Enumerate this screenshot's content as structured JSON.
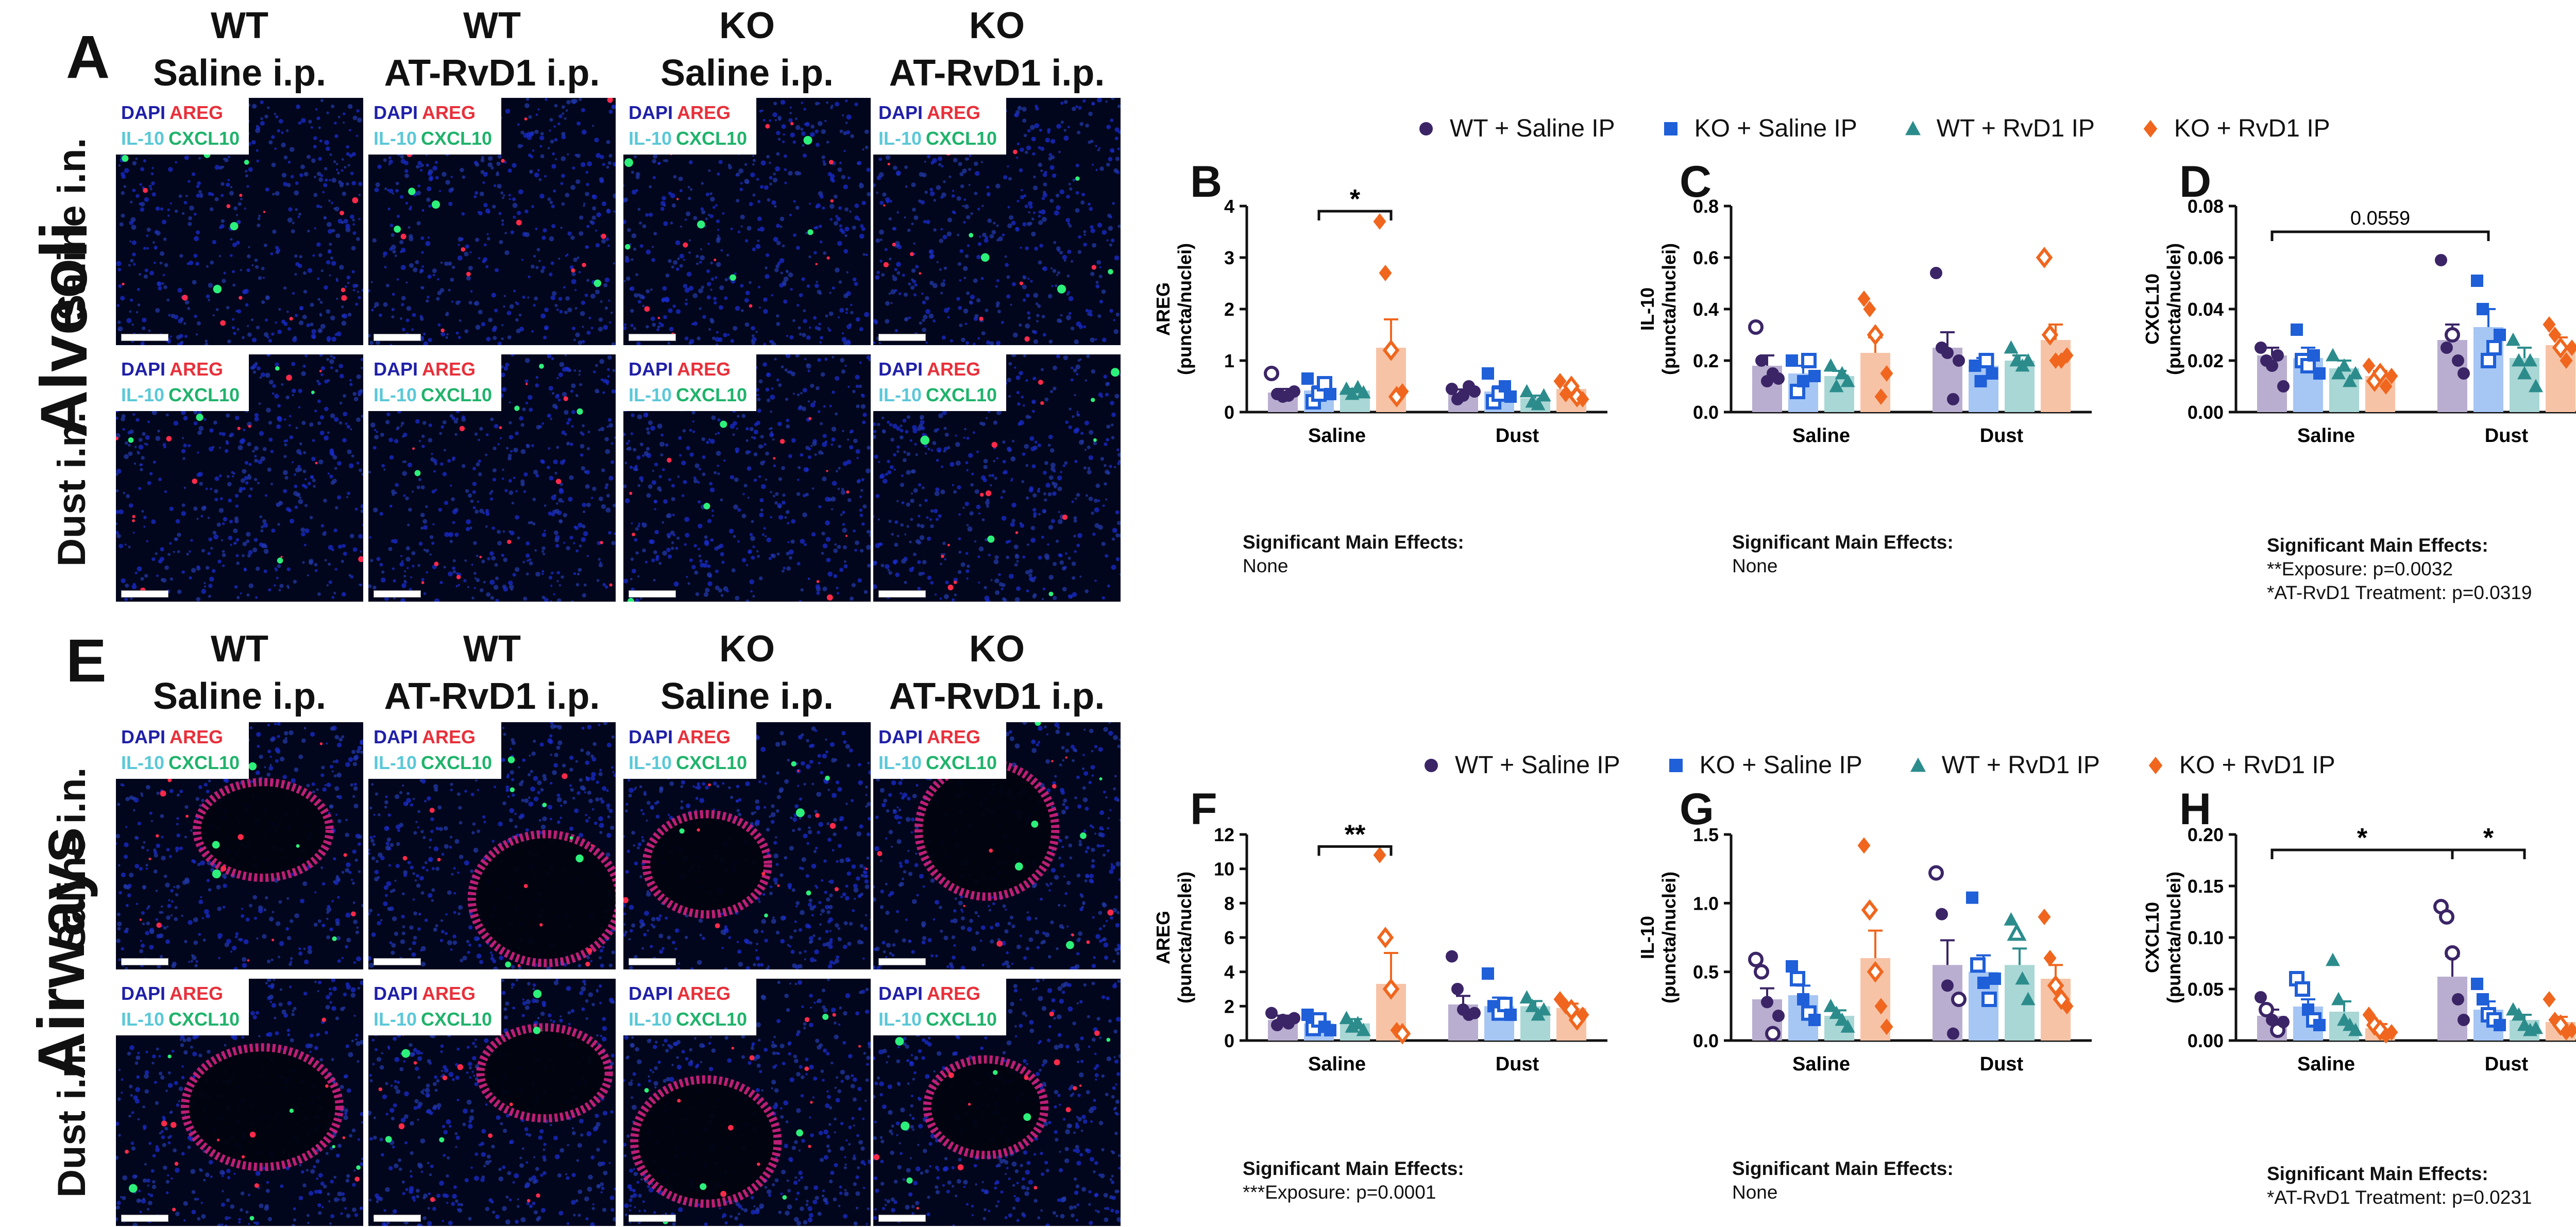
{
  "panel_letters": {
    "A": "A",
    "B": "B",
    "C": "C",
    "D": "D",
    "E": "E",
    "F": "F",
    "G": "G",
    "H": "H"
  },
  "region_labels": {
    "top": "Alveoli",
    "bottom": "Airways"
  },
  "column_headers": [
    {
      "line1": "WT",
      "line2": "Saline i.p."
    },
    {
      "line1": "WT",
      "line2": "AT-RvD1 i.p."
    },
    {
      "line1": "KO",
      "line2": "Saline i.p."
    },
    {
      "line1": "KO",
      "line2": "AT-RvD1 i.p."
    }
  ],
  "row_headers": {
    "saline": "Saline i.n.",
    "dust": "Dust i.n."
  },
  "stain_labels": {
    "dapi": "DAPI",
    "areg": "AREG",
    "il10": "IL-10",
    "cxcl10": "CXCL10"
  },
  "legend": {
    "items": [
      {
        "label": "WT + Saline IP",
        "color": "#3b2566",
        "marker": "circle"
      },
      {
        "label": "KO + Saline IP",
        "color": "#1f5fd8",
        "marker": "square"
      },
      {
        "label": "WT + RvD1 IP",
        "color": "#2c8c8c",
        "marker": "triangle"
      },
      {
        "label": "KO + RvD1 IP",
        "color": "#f0661e",
        "marker": "diamond"
      }
    ]
  },
  "colors": {
    "bar_fills": [
      "#b9aed0",
      "#a6c6f4",
      "#a9d7d5",
      "#f7c3a6"
    ],
    "marker_colors": [
      "#3b2566",
      "#1f5fd8",
      "#2c8c8c",
      "#f0661e"
    ]
  },
  "effects": {
    "title": "Significant Main Effects:",
    "B": [
      "None"
    ],
    "C": [
      "None"
    ],
    "D": [
      "**Exposure: p=0.0032",
      "*AT-RvD1 Treatment: p=0.0319"
    ],
    "F": [
      "***Exposure: p=0.0001"
    ],
    "G": [
      "None"
    ],
    "H": [
      "*AT-RvD1 Treatment: p=0.0231"
    ]
  },
  "chart_data": [
    {
      "id": "B",
      "type": "bar",
      "ylabel": "AREG",
      "ylabel2": "(puncta/nuclei)",
      "categories": [
        "Saline",
        "Dust"
      ],
      "ylim": [
        0,
        4
      ],
      "yticks": [
        0,
        1,
        2,
        3,
        4
      ],
      "ytick_labels": [
        "0",
        "1",
        "2",
        "3",
        "4"
      ],
      "series": [
        {
          "name": "WT + Saline IP",
          "values": [
            0.38,
            0.38
          ],
          "sem": [
            0.07,
            0.06
          ],
          "points": [
            [
              0.75,
              0.35,
              0.3,
              0.32,
              0.4
            ],
            [
              0.45,
              0.25,
              0.32,
              0.5,
              0.4
            ]
          ],
          "hollow": [
            [
              0
            ],
            []
          ]
        },
        {
          "name": "KO + Saline IP",
          "values": [
            0.42,
            0.4
          ],
          "sem": [
            0.08,
            0.1
          ],
          "points": [
            [
              0.65,
              0.2,
              0.35,
              0.55,
              0.35
            ],
            [
              0.75,
              0.2,
              0.35,
              0.5,
              0.3
            ]
          ],
          "hollow": [
            [
              1,
              2,
              3
            ],
            [
              1,
              2
            ]
          ]
        },
        {
          "name": "WT + RvD1 IP",
          "values": [
            0.42,
            0.27
          ],
          "sem": [
            0.03,
            0.05
          ],
          "points": [
            [
              0.45,
              0.35,
              0.48,
              0.38
            ],
            [
              0.4,
              0.2,
              0.15,
              0.32
            ]
          ],
          "hollow": [
            [],
            []
          ]
        },
        {
          "name": "KO + RvD1 IP",
          "values": [
            1.25,
            0.45
          ],
          "sem": [
            0.55,
            0.07
          ],
          "points": [
            [
              3.7,
              2.7,
              1.2,
              0.3,
              0.4
            ],
            [
              0.6,
              0.35,
              0.5,
              0.3,
              0.25
            ]
          ],
          "hollow": [
            [
              2,
              3
            ],
            [
              2,
              3
            ]
          ]
        }
      ],
      "sig": [
        {
          "from": [
            0,
            1
          ],
          "to": [
            0,
            3
          ],
          "label": "*",
          "y": 3.9
        }
      ]
    },
    {
      "id": "C",
      "type": "bar",
      "ylabel": "IL-10",
      "ylabel2": "(puncta/nuclei)",
      "categories": [
        "Saline",
        "Dust"
      ],
      "ylim": [
        0,
        0.8
      ],
      "yticks": [
        0,
        0.2,
        0.4,
        0.6,
        0.8
      ],
      "ytick_labels": [
        "0.0",
        "0.2",
        "0.4",
        "0.6",
        "0.8"
      ],
      "series": [
        {
          "name": "WT + Saline IP",
          "values": [
            0.18,
            0.25
          ],
          "sem": [
            0.04,
            0.06
          ],
          "points": [
            [
              0.33,
              0.2,
              0.12,
              0.15,
              0.13
            ],
            [
              0.54,
              0.25,
              0.23,
              0.05,
              0.2
            ]
          ],
          "hollow": [
            [
              0
            ],
            []
          ]
        },
        {
          "name": "KO + Saline IP",
          "values": [
            0.15,
            0.18
          ],
          "sem": [
            0.03,
            0.03
          ],
          "points": [
            [
              0.2,
              0.08,
              0.12,
              0.2,
              0.14
            ],
            [
              0.18,
              0.12,
              0.2,
              0.15
            ]
          ],
          "hollow": [
            [
              1,
              3
            ],
            [
              2
            ]
          ]
        },
        {
          "name": "WT + RvD1 IP",
          "values": [
            0.14,
            0.2
          ],
          "sem": [
            0.02,
            0.02
          ],
          "points": [
            [
              0.18,
              0.1,
              0.15,
              0.12
            ],
            [
              0.25,
              0.2,
              0.18,
              0.2
            ]
          ],
          "hollow": [
            [],
            []
          ]
        },
        {
          "name": "KO + RvD1 IP",
          "values": [
            0.23,
            0.28
          ],
          "sem": [
            0.06,
            0.06
          ],
          "points": [
            [
              0.44,
              0.4,
              0.3,
              0.06,
              0.15
            ],
            [
              0.6,
              0.3,
              0.2,
              0.2,
              0.22
            ]
          ],
          "hollow": [
            [
              2
            ],
            [
              0,
              1
            ]
          ]
        }
      ],
      "sig": []
    },
    {
      "id": "D",
      "type": "bar",
      "ylabel": "CXCL10",
      "ylabel2": "(puncta/nuclei)",
      "categories": [
        "Saline",
        "Dust"
      ],
      "ylim": [
        0,
        0.08
      ],
      "yticks": [
        0,
        0.02,
        0.04,
        0.06,
        0.08
      ],
      "ytick_labels": [
        "0.00",
        "0.02",
        "0.04",
        "0.06",
        "0.08"
      ],
      "series": [
        {
          "name": "WT + Saline IP",
          "values": [
            0.022,
            0.028
          ],
          "sem": [
            0.003,
            0.006
          ],
          "points": [
            [
              0.025,
              0.02,
              0.018,
              0.022,
              0.01
            ],
            [
              0.059,
              0.025,
              0.03,
              0.02,
              0.015
            ]
          ],
          "hollow": [
            [],
            [
              2
            ]
          ]
        },
        {
          "name": "KO + Saline IP",
          "values": [
            0.021,
            0.033
          ],
          "sem": [
            0.004,
            0.007
          ],
          "points": [
            [
              0.032,
              0.02,
              0.018,
              0.022,
              0.015
            ],
            [
              0.051,
              0.04,
              0.02,
              0.025,
              0.03
            ]
          ],
          "hollow": [
            [
              1,
              2
            ],
            [
              2,
              3
            ]
          ]
        },
        {
          "name": "WT + RvD1 IP",
          "values": [
            0.017,
            0.021
          ],
          "sem": [
            0.003,
            0.004
          ],
          "points": [
            [
              0.022,
              0.015,
              0.018,
              0.012,
              0.015
            ],
            [
              0.028,
              0.02,
              0.015,
              0.02,
              0.01
            ]
          ],
          "hollow": [
            [],
            []
          ]
        },
        {
          "name": "KO + RvD1 IP",
          "values": [
            0.014,
            0.026
          ],
          "sem": [
            0.002,
            0.003
          ],
          "points": [
            [
              0.018,
              0.012,
              0.015,
              0.01,
              0.014
            ],
            [
              0.034,
              0.03,
              0.025,
              0.02,
              0.025
            ]
          ],
          "hollow": [
            [
              1,
              2
            ],
            [
              2
            ]
          ]
        }
      ],
      "sig": [
        {
          "from": [
            0,
            0
          ],
          "to": [
            1,
            1
          ],
          "label": "0.0559",
          "y": 0.07
        }
      ]
    },
    {
      "id": "F",
      "type": "bar",
      "ylabel": "AREG",
      "ylabel2": "(puncta/nuclei)",
      "categories": [
        "Saline",
        "Dust"
      ],
      "ylim": [
        0,
        12
      ],
      "yticks": [
        0,
        2,
        4,
        6,
        8,
        10,
        12
      ],
      "ytick_labels": [
        "0",
        "2",
        "4",
        "6",
        "8",
        "10",
        "12"
      ],
      "series": [
        {
          "name": "WT + Saline IP",
          "values": [
            1.2,
            2.1
          ],
          "sem": [
            0.25,
            0.5
          ],
          "points": [
            [
              1.6,
              0.9,
              1.2,
              1.0,
              1.3
            ],
            [
              4.9,
              3.0,
              1.8,
              1.5,
              1.6
            ]
          ],
          "hollow": [
            [],
            []
          ]
        },
        {
          "name": "KO + Saline IP",
          "values": [
            1.0,
            2.0
          ],
          "sem": [
            0.3,
            0.5
          ],
          "points": [
            [
              1.5,
              0.7,
              1.2,
              0.8,
              0.6
            ],
            [
              3.9,
              2.0,
              1.6,
              2.1,
              1.5
            ]
          ],
          "hollow": [
            [
              1,
              2
            ],
            [
              2,
              3
            ]
          ]
        },
        {
          "name": "WT + RvD1 IP",
          "values": [
            1.0,
            2.0
          ],
          "sem": [
            0.25,
            0.3
          ],
          "points": [
            [
              1.3,
              0.8,
              1.0,
              0.6
            ],
            [
              2.5,
              2.0,
              1.5,
              1.8
            ]
          ],
          "hollow": [
            [],
            []
          ]
        },
        {
          "name": "KO + RvD1 IP",
          "values": [
            3.3,
            1.9
          ],
          "sem": [
            1.8,
            0.25
          ],
          "points": [
            [
              10.8,
              6.0,
              3.0,
              0.6,
              0.4
            ],
            [
              2.4,
              2.0,
              1.8,
              1.2,
              1.5
            ]
          ],
          "hollow": [
            [
              1,
              2,
              4
            ],
            [
              2,
              3
            ]
          ]
        }
      ],
      "sig": [
        {
          "from": [
            0,
            1
          ],
          "to": [
            0,
            3
          ],
          "label": "**",
          "y": 11.3
        }
      ]
    },
    {
      "id": "G",
      "type": "bar",
      "ylabel": "IL-10",
      "ylabel2": "(puncta/nuclei)",
      "categories": [
        "Saline",
        "Dust"
      ],
      "ylim": [
        0,
        1.5
      ],
      "yticks": [
        0,
        0.5,
        1.0,
        1.5
      ],
      "ytick_labels": [
        "0.0",
        "0.5",
        "1.0",
        "1.5"
      ],
      "series": [
        {
          "name": "WT + Saline IP",
          "values": [
            0.3,
            0.55
          ],
          "sem": [
            0.08,
            0.18
          ],
          "points": [
            [
              0.59,
              0.5,
              0.28,
              0.05,
              0.18
            ],
            [
              1.22,
              0.92,
              0.4,
              0.05,
              0.3
            ]
          ],
          "hollow": [
            [
              0,
              1,
              3
            ],
            [
              0,
              4
            ]
          ]
        },
        {
          "name": "KO + Saline IP",
          "values": [
            0.33,
            0.5
          ],
          "sem": [
            0.07,
            0.12
          ],
          "points": [
            [
              0.54,
              0.45,
              0.3,
              0.2,
              0.15
            ],
            [
              1.04,
              0.55,
              0.42,
              0.3,
              0.45
            ]
          ],
          "hollow": [
            [
              1,
              3
            ],
            [
              1,
              3
            ]
          ]
        },
        {
          "name": "WT + RvD1 IP",
          "values": [
            0.18,
            0.55
          ],
          "sem": [
            0.04,
            0.12
          ],
          "points": [
            [
              0.25,
              0.2,
              0.15,
              0.1
            ],
            [
              0.88,
              0.78,
              0.45,
              0.3
            ]
          ],
          "hollow": [
            [],
            [
              1
            ]
          ]
        },
        {
          "name": "KO + RvD1 IP",
          "values": [
            0.6,
            0.45
          ],
          "sem": [
            0.2,
            0.1
          ],
          "points": [
            [
              1.42,
              0.95,
              0.5,
              0.25,
              0.1
            ],
            [
              0.9,
              0.6,
              0.4,
              0.3,
              0.25
            ]
          ],
          "hollow": [
            [
              1,
              2
            ],
            [
              2,
              3
            ]
          ]
        }
      ],
      "sig": []
    },
    {
      "id": "H",
      "type": "bar",
      "ylabel": "CXCL10",
      "ylabel2": "(puncta/nuclei)",
      "categories": [
        "Saline",
        "Dust"
      ],
      "ylim": [
        0,
        0.2
      ],
      "yticks": [
        0,
        0.05,
        0.1,
        0.15,
        0.2
      ],
      "ytick_labels": [
        "0.00",
        "0.05",
        "0.10",
        "0.15",
        "0.20"
      ],
      "series": [
        {
          "name": "WT + Saline IP",
          "values": [
            0.024,
            0.062
          ],
          "sem": [
            0.006,
            0.02
          ],
          "points": [
            [
              0.042,
              0.03,
              0.02,
              0.01,
              0.018
            ],
            [
              0.13,
              0.12,
              0.085,
              0.04,
              0.02
            ]
          ],
          "hollow": [
            [
              1,
              3
            ],
            [
              0,
              1,
              2
            ]
          ]
        },
        {
          "name": "KO + Saline IP",
          "values": [
            0.033,
            0.03
          ],
          "sem": [
            0.007,
            0.008
          ],
          "points": [
            [
              0.06,
              0.05,
              0.03,
              0.02,
              0.015
            ],
            [
              0.055,
              0.04,
              0.025,
              0.02,
              0.015
            ]
          ],
          "hollow": [
            [
              0,
              1,
              3
            ],
            [
              2,
              3
            ]
          ]
        },
        {
          "name": "WT + RvD1 IP",
          "values": [
            0.028,
            0.02
          ],
          "sem": [
            0.01,
            0.005
          ],
          "points": [
            [
              0.078,
              0.04,
              0.02,
              0.015,
              0.01
            ],
            [
              0.03,
              0.025,
              0.015,
              0.01,
              0.012
            ]
          ],
          "hollow": [
            [],
            []
          ]
        },
        {
          "name": "KO + RvD1 IP",
          "values": [
            0.012,
            0.018
          ],
          "sem": [
            0.004,
            0.005
          ],
          "points": [
            [
              0.025,
              0.015,
              0.01,
              0.005,
              0.008
            ],
            [
              0.04,
              0.02,
              0.015,
              0.008,
              0.01
            ]
          ],
          "hollow": [
            [
              1,
              2
            ],
            [
              2
            ]
          ]
        }
      ],
      "sig": [
        {
          "from": [
            0,
            0
          ],
          "to": [
            1,
            0
          ],
          "label": "*",
          "y": 0.185
        },
        {
          "from": [
            1,
            0
          ],
          "to": [
            1,
            2
          ],
          "label": "*",
          "y": 0.185
        }
      ]
    }
  ]
}
